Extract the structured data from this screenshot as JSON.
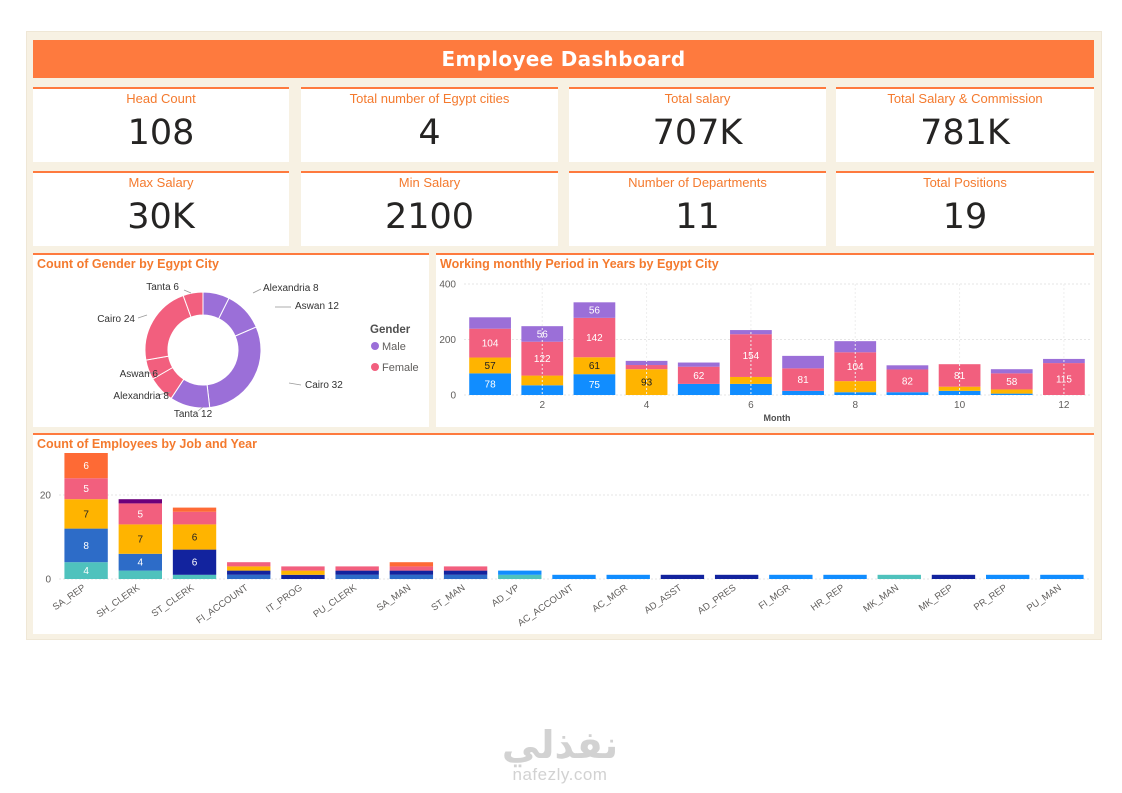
{
  "dashboard": {
    "title": "Employee  Dashboard",
    "kpis": [
      {
        "label": "Head Count",
        "value": "108"
      },
      {
        "label": "Total number of Egypt cities",
        "value": "4"
      },
      {
        "label": "Total salary",
        "value": "707K"
      },
      {
        "label": "Total Salary & Commission",
        "value": "781K"
      },
      {
        "label": "Max Salary",
        "value": "30K"
      },
      {
        "label": "Min Salary",
        "value": "2100"
      },
      {
        "label": "Number of Departments",
        "value": "11"
      },
      {
        "label": "Total Positions",
        "value": "19"
      }
    ]
  },
  "colors": {
    "accent": "#fe7a3e",
    "male": "#9b6fd8",
    "female": "#f25f7e",
    "blue": "#118dff",
    "yellow": "#ffb400",
    "navy": "#12239e",
    "midblue": "#2d6cc8",
    "teal": "#4fc2bd",
    "orange": "#fe6a35",
    "darkpurple": "#6b007b"
  },
  "watermark": {
    "arabic": "نفذلي",
    "latin": "nafezly.com"
  },
  "chart_data": [
    {
      "type": "pie",
      "title": "Count of Gender by Egypt City",
      "legend_title": "Gender",
      "legend_placement": "right",
      "legend": [
        {
          "name": "Male",
          "color": "#9b6fd8"
        },
        {
          "name": "Female",
          "color": "#f25f7e"
        }
      ],
      "slices": [
        {
          "label": "Alexandria 8",
          "city": "Alexandria",
          "gender": "Male",
          "value": 8,
          "color": "#9b6fd8"
        },
        {
          "label": "Aswan 12",
          "city": "Aswan",
          "gender": "Male",
          "value": 12,
          "color": "#9b6fd8"
        },
        {
          "label": "Cairo 32",
          "city": "Cairo",
          "gender": "Male",
          "value": 32,
          "color": "#9b6fd8"
        },
        {
          "label": "Tanta 12",
          "city": "Tanta",
          "gender": "Male",
          "value": 12,
          "color": "#9b6fd8"
        },
        {
          "label": "Alexandria 8",
          "city": "Alexandria",
          "gender": "Female",
          "value": 8,
          "color": "#f25f7e"
        },
        {
          "label": "Aswan 6",
          "city": "Aswan",
          "gender": "Female",
          "value": 6,
          "color": "#f25f7e"
        },
        {
          "label": "Cairo 24",
          "city": "Cairo",
          "gender": "Female",
          "value": 24,
          "color": "#f25f7e"
        },
        {
          "label": "Tanta 6",
          "city": "Tanta",
          "gender": "Female",
          "value": 6,
          "color": "#f25f7e"
        }
      ]
    },
    {
      "type": "bar",
      "stacked": true,
      "title": "Working monthly Period in Years by Egypt City",
      "xlabel": "Month",
      "ylabel": "",
      "ylim": [
        0,
        400
      ],
      "yticks": [
        0,
        200,
        400
      ],
      "xticks": [
        2,
        4,
        6,
        8,
        10,
        12
      ],
      "grid": true,
      "categories": [
        1,
        2,
        3,
        4,
        5,
        6,
        7,
        8,
        9,
        10,
        11,
        12
      ],
      "series": [
        {
          "color": "#118dff",
          "values": [
            78,
            35,
            75,
            0,
            40,
            40,
            15,
            10,
            10,
            15,
            5,
            0
          ],
          "labels": [
            "78",
            "",
            "75",
            "",
            "",
            "",
            "",
            "",
            "",
            "",
            "",
            ""
          ]
        },
        {
          "color": "#ffb400",
          "values": [
            57,
            35,
            61,
            93,
            0,
            25,
            0,
            40,
            0,
            15,
            15,
            0
          ],
          "labels": [
            "57",
            "",
            "61",
            "93",
            "",
            "",
            "",
            "",
            "",
            "",
            "",
            ""
          ]
        },
        {
          "color": "#f25f7e",
          "values": [
            104,
            122,
            142,
            15,
            62,
            154,
            81,
            104,
            82,
            81,
            58,
            115
          ],
          "labels": [
            "104",
            "122",
            "142",
            "",
            "62",
            "154",
            "81",
            "104",
            "82",
            "81",
            "58",
            "115"
          ]
        },
        {
          "color": "#9b6fd8",
          "values": [
            41,
            56,
            56,
            15,
            15,
            15,
            45,
            40,
            15,
            0,
            15,
            15
          ],
          "labels": [
            "",
            "56",
            "56",
            "",
            "",
            "",
            "",
            "",
            "",
            "",
            "",
            ""
          ]
        }
      ]
    },
    {
      "type": "bar",
      "stacked": true,
      "title": "Count of Employees by Job and Year",
      "xlabel": "",
      "ylabel": "",
      "ylim": [
        0,
        30
      ],
      "yticks": [
        0,
        20
      ],
      "grid": true,
      "categories": [
        "SA_REP",
        "SH_CLERK",
        "ST_CLERK",
        "FI_ACCOUNT",
        "IT_PROG",
        "PU_CLERK",
        "SA_MAN",
        "ST_MAN",
        "AD_VP",
        "AC_ACCOUNT",
        "AC_MGR",
        "AD_ASST",
        "AD_PRES",
        "FI_MGR",
        "HR_REP",
        "MK_MAN",
        "MK_REP",
        "PR_REP",
        "PU_MAN"
      ],
      "series": [
        {
          "color": "#4fc2bd",
          "values": [
            4,
            2,
            1,
            0,
            0,
            0,
            0,
            0,
            1,
            0,
            0,
            0,
            0,
            0,
            0,
            1,
            0,
            0,
            0
          ],
          "labels": [
            "4",
            "",
            "",
            "",
            "",
            "",
            "",
            "",
            "",
            "",
            "",
            "",
            "",
            "",
            "",
            "",
            "",
            "",
            ""
          ]
        },
        {
          "color": "#2d6cc8",
          "values": [
            8,
            4,
            0,
            1,
            0,
            1,
            1,
            1,
            0,
            0,
            0,
            0,
            0,
            0,
            0,
            0,
            0,
            0,
            0
          ],
          "labels": [
            "8",
            "4",
            "",
            "",
            "",
            "",
            "",
            "",
            "",
            "",
            "",
            "",
            "",
            "",
            "",
            "",
            "",
            "",
            ""
          ]
        },
        {
          "color": "#12239e",
          "values": [
            0,
            0,
            6,
            1,
            1,
            1,
            1,
            1,
            0,
            0,
            0,
            1,
            1,
            0,
            0,
            0,
            1,
            0,
            0
          ],
          "labels": [
            "",
            "",
            "6",
            "",
            "",
            "",
            "",
            "",
            "",
            "",
            "",
            "",
            "",
            "",
            "",
            "",
            "",
            "",
            ""
          ]
        },
        {
          "color": "#118dff",
          "values": [
            0,
            0,
            0,
            0,
            0,
            0,
            0,
            0,
            1,
            1,
            1,
            0,
            0,
            1,
            1,
            0,
            0,
            1,
            1
          ],
          "labels": [
            "",
            "",
            "",
            "",
            "",
            "",
            "",
            "",
            "",
            "",
            "",
            "",
            "",
            "",
            "",
            "",
            "",
            "",
            ""
          ]
        },
        {
          "color": "#ffb400",
          "values": [
            7,
            7,
            6,
            1,
            1,
            0,
            0,
            0,
            0,
            0,
            0,
            0,
            0,
            0,
            0,
            0,
            0,
            0,
            0
          ],
          "labels": [
            "7",
            "7",
            "6",
            "",
            "",
            "",
            "",
            "",
            "",
            "",
            "",
            "",
            "",
            "",
            "",
            "",
            "",
            "",
            ""
          ]
        },
        {
          "color": "#f25f7e",
          "values": [
            5,
            5,
            3,
            1,
            1,
            1,
            1,
            1,
            0,
            0,
            0,
            0,
            0,
            0,
            0,
            0,
            0,
            0,
            0
          ],
          "labels": [
            "5",
            "5",
            "",
            "",
            "",
            "",
            "",
            "",
            "",
            "",
            "",
            "",
            "",
            "",
            "",
            "",
            "",
            "",
            ""
          ]
        },
        {
          "color": "#fe6a35",
          "values": [
            6,
            0,
            1,
            0,
            0,
            0,
            1,
            0,
            0,
            0,
            0,
            0,
            0,
            0,
            0,
            0,
            0,
            0,
            0
          ],
          "labels": [
            "6",
            "",
            "",
            "",
            "",
            "",
            "",
            "",
            "",
            "",
            "",
            "",
            "",
            "",
            "",
            "",
            "",
            "",
            ""
          ]
        },
        {
          "color": "#6b007b",
          "values": [
            0,
            1,
            0,
            0,
            0,
            0,
            0,
            0,
            0,
            0,
            0,
            0,
            0,
            0,
            0,
            0,
            0,
            0,
            0
          ],
          "labels": [
            "",
            "",
            "",
            "",
            "",
            "",
            "",
            "",
            "",
            "",
            "",
            "",
            "",
            "",
            "",
            "",
            "",
            "",
            ""
          ]
        }
      ]
    }
  ]
}
